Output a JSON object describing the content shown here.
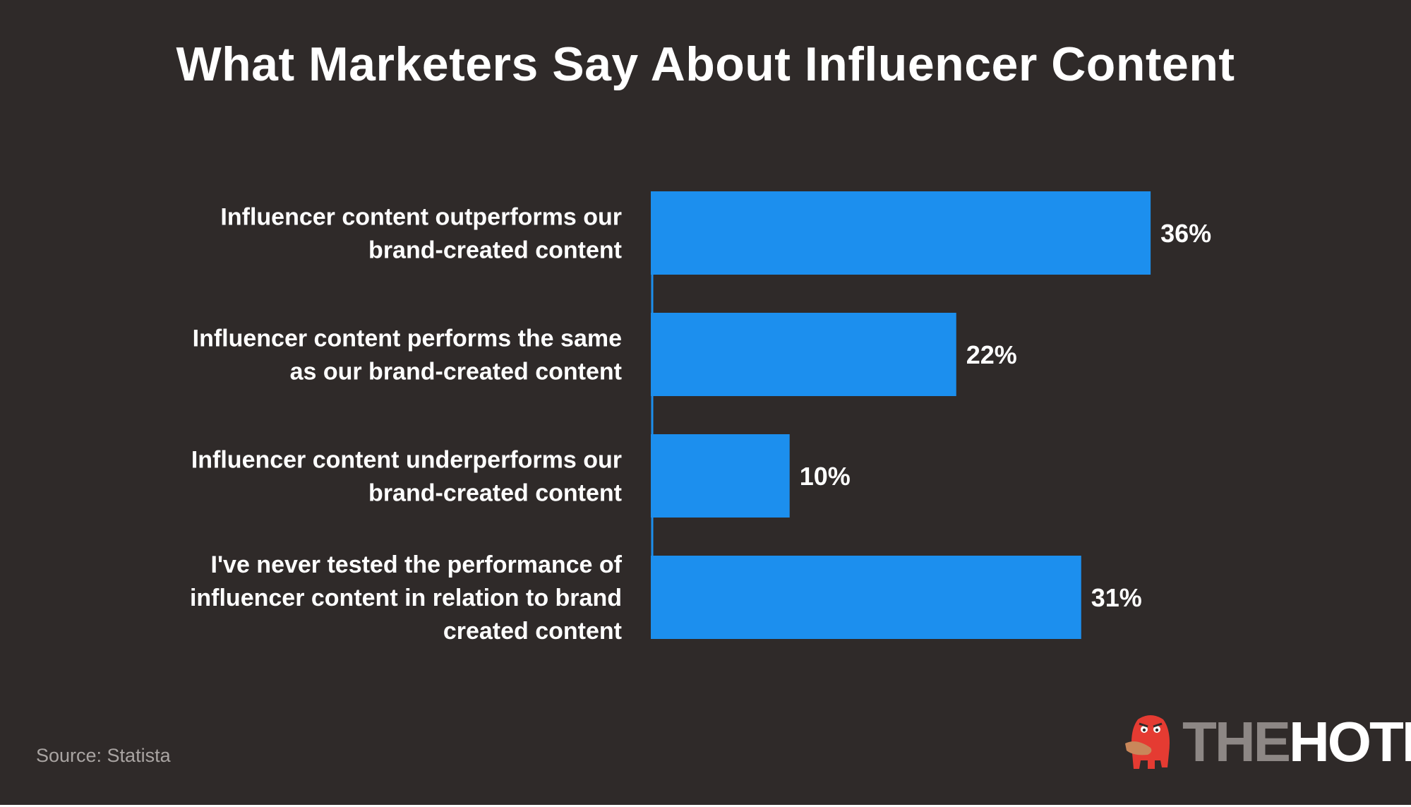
{
  "page": {
    "title": "What Marketers Say About Influencer Content",
    "source": "Source: Statista"
  },
  "logo": {
    "part1": "THE",
    "part2": "HOTH",
    "icon": "red-monster-mascot-icon"
  },
  "colors": {
    "background": "#2f2a29",
    "bar": "#1c8fee",
    "text": "#ffffff",
    "muted": "#a9a4a2",
    "logo_red": "#e53b32"
  },
  "chart_data": {
    "type": "bar",
    "orientation": "horizontal",
    "title": "What Marketers Say About Influencer Content",
    "categories": [
      "Influencer content outperforms our brand-created content",
      "Influencer content performs the same as our brand-created content",
      "Influencer content underperforms our brand-created content",
      "I've never tested the performance of influencer content in relation to brand created content"
    ],
    "category_lines": [
      [
        "Influencer content outperforms our",
        "brand-created content"
      ],
      [
        "Influencer content performs the same",
        "as our brand-created content"
      ],
      [
        "Influencer content underperforms our",
        "brand-created content"
      ],
      [
        "I've never tested the performance of",
        "influencer content in relation to brand",
        "created content"
      ]
    ],
    "values": [
      36,
      22,
      10,
      31
    ],
    "value_labels": [
      "36%",
      "22%",
      "10%",
      "31%"
    ],
    "unit": "%",
    "xlim": [
      0,
      36
    ],
    "grid": false,
    "legend": "none"
  }
}
